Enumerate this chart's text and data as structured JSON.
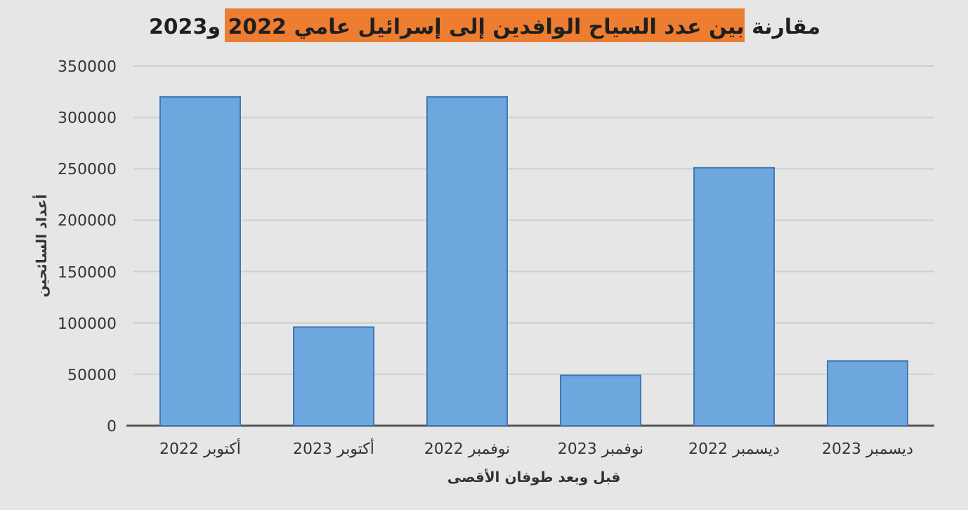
{
  "chart_data": {
    "type": "bar",
    "title": "مقارنة بين عدد السياح الوافدين إلى إسرائيل عامي 2022 و2023",
    "xlabel": "قبل وبعد طوفان الأقصى",
    "ylabel": "أعداد السائحين",
    "categories": [
      "أكتوبر 2022",
      "أكتوبر 2023",
      "نوفمبر 2022",
      "نوفمبر 2023",
      "ديسمبر 2022",
      "ديسمبر 2023"
    ],
    "values": [
      320000,
      96000,
      320000,
      49000,
      251000,
      63000
    ],
    "color": "#6ea6de",
    "ylim": [
      0,
      350000
    ],
    "yticks": [
      0,
      50000,
      100000,
      150000,
      200000,
      250000,
      300000,
      350000
    ],
    "grid": "y"
  }
}
